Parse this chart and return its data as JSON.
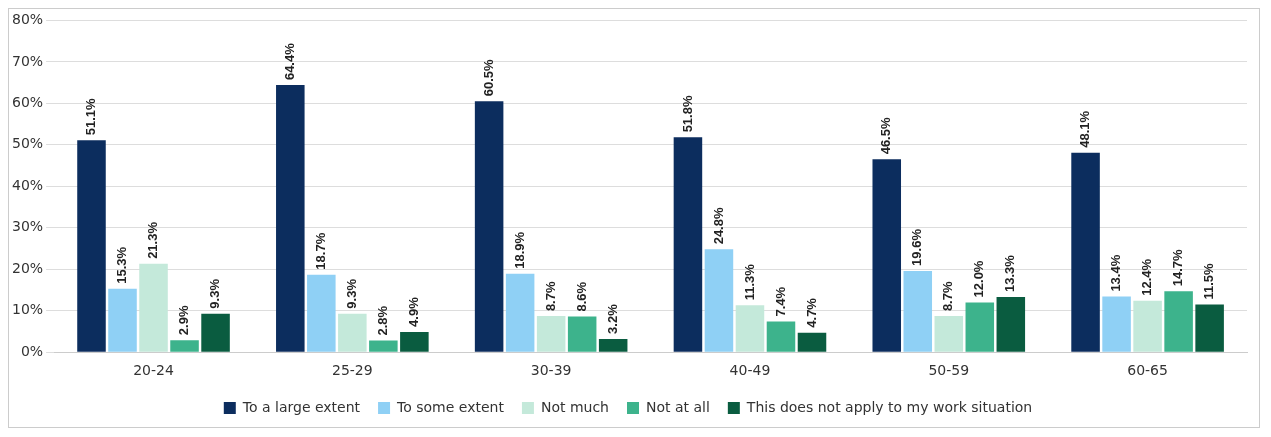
{
  "chart_data": {
    "type": "bar",
    "categories": [
      "20-24",
      "25-29",
      "30-39",
      "40-49",
      "50-59",
      "60-65"
    ],
    "series": [
      {
        "name": "To a large extent",
        "color": "#0c2d5e",
        "values": [
          51.1,
          64.4,
          60.5,
          51.8,
          46.5,
          48.1
        ],
        "value_labels": [
          "51.1%",
          "64.4%",
          "60.5%",
          "51.8%",
          "46.5%",
          "48.1%"
        ]
      },
      {
        "name": "To some extent",
        "color": "#8fd0f5",
        "values": [
          15.3,
          18.7,
          18.9,
          24.8,
          19.6,
          13.4
        ],
        "value_labels": [
          "15.3%",
          "18.7%",
          "18.9%",
          "24.8%",
          "19.6%",
          "13.4%"
        ]
      },
      {
        "name": "Not much",
        "color": "#c4e9da",
        "values": [
          21.3,
          9.3,
          8.7,
          11.3,
          8.7,
          12.4
        ],
        "value_labels": [
          "21.3%",
          "9.3%",
          "8.7%",
          "11.3%",
          "8.7%",
          "12.4%"
        ]
      },
      {
        "name": "Not at all",
        "color": "#3db38c",
        "values": [
          2.9,
          2.8,
          8.6,
          7.4,
          12.0,
          14.7
        ],
        "value_labels": [
          "2.9%",
          "2.8%",
          "8.6%",
          "7.4%",
          "12.0%",
          "14.7%"
        ]
      },
      {
        "name": "This does not apply to my work situation",
        "color": "#0a5c40",
        "values": [
          9.3,
          4.9,
          3.2,
          4.7,
          13.3,
          11.5
        ],
        "value_labels": [
          "9.3%",
          "4.9%",
          "3.2%",
          "4.7%",
          "13.3%",
          "11.5%"
        ]
      }
    ],
    "ylim": [
      0,
      80
    ],
    "yticks": [
      {
        "value": 0,
        "label": "0%"
      },
      {
        "value": 10,
        "label": "10%"
      },
      {
        "value": 20,
        "label": "20%"
      },
      {
        "value": 30,
        "label": "30%"
      },
      {
        "value": 40,
        "label": "40%"
      },
      {
        "value": 50,
        "label": "50%"
      },
      {
        "value": 60,
        "label": "60%"
      },
      {
        "value": 70,
        "label": "70%"
      },
      {
        "value": 80,
        "label": "80%"
      }
    ],
    "grid": "y",
    "legend": "bottom"
  }
}
